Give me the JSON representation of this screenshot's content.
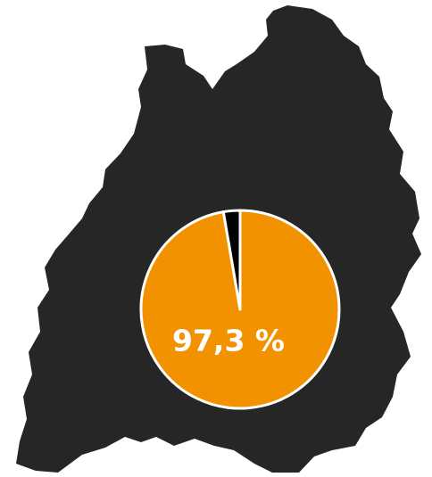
{
  "chart_data": {
    "type": "pie",
    "values": [
      97.3,
      2.7
    ],
    "value_labels": [
      "97,3 %",
      null
    ],
    "colors": [
      "#f39200",
      "#000000"
    ]
  }
}
